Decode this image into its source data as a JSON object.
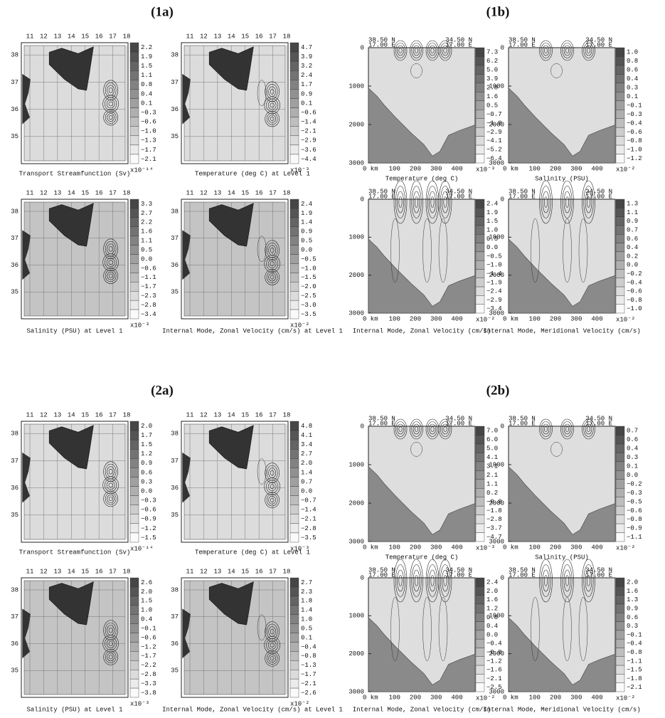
{
  "sections": [
    {
      "label": "(1a)",
      "panels": [
        {
          "caption": "Transport Streamfunction (Sv)",
          "x_ticks": [
            "11",
            "12",
            "13",
            "14",
            "15",
            "16",
            "17",
            "18"
          ],
          "y_ticks": [
            "38",
            "37",
            "36",
            "35"
          ],
          "colorbar": [
            "2.2",
            "1.9",
            "1.5",
            "1.1",
            "0.8",
            "0.4",
            "0.1",
            "−0.3",
            "−0.6",
            "−1.0",
            "−1.3",
            "−1.7",
            "−2.1"
          ],
          "scale": "x10⁻¹⁴"
        },
        {
          "caption": "Temperature (deg C) at Level 1",
          "x_ticks": [
            "11",
            "12",
            "13",
            "14",
            "15",
            "16",
            "17",
            "18"
          ],
          "y_ticks": [
            "38",
            "37",
            "36",
            "35"
          ],
          "colorbar": [
            "4.7",
            "3.9",
            "3.2",
            "2.4",
            "1.7",
            "0.9",
            "0.1",
            "−0.6",
            "−1.4",
            "−2.1",
            "−2.9",
            "−3.6",
            "−4.4"
          ],
          "scale": "x10⁻³"
        },
        {
          "caption": "Salinity (PSU) at Level 1",
          "x_ticks": [
            "11",
            "12",
            "13",
            "14",
            "15",
            "16",
            "17",
            "18"
          ],
          "y_ticks": [
            "38",
            "37",
            "36",
            "35"
          ],
          "colorbar": [
            "3.3",
            "2.7",
            "2.2",
            "1.6",
            "1.1",
            "0.5",
            "0.0",
            "−0.6",
            "−1.1",
            "−1.7",
            "−2.3",
            "−2.8",
            "−3.4"
          ],
          "scale": "x10⁻³"
        },
        {
          "caption": "Internal Mode, Zonal Velocity (cm/s) at Level 1",
          "x_ticks": [
            "11",
            "12",
            "13",
            "14",
            "15",
            "16",
            "17",
            "18"
          ],
          "y_ticks": [
            "38",
            "37",
            "36",
            "35"
          ],
          "colorbar": [
            "2.4",
            "1.9",
            "1.4",
            "0.9",
            "0.5",
            "0.0",
            "−0.5",
            "−1.0",
            "−1.5",
            "−2.0",
            "−2.5",
            "−3.0",
            "−3.5"
          ],
          "scale": "x10⁻²"
        }
      ]
    },
    {
      "label": "(1b)",
      "panels": [
        {
          "caption": "Temperature (deg C)",
          "start": [
            "38.50 N",
            "17.00 E"
          ],
          "end": [
            "34.50 N",
            "17.00 E"
          ],
          "depth_ticks": [
            "0",
            "1000",
            "2000",
            "3000"
          ],
          "distance_ticks": [
            "0 km",
            "100",
            "200",
            "300",
            "400"
          ],
          "colorbar": [
            "7.3",
            "6.2",
            "5.0",
            "3.9",
            "2.8",
            "1.6",
            "0.5",
            "−0.7",
            "−1.8",
            "−2.9",
            "−4.1",
            "−5.2",
            "−6.4"
          ],
          "scale": "x10⁻³"
        },
        {
          "caption": "Salinity (PSU)",
          "start": [
            "38.50 N",
            "17.00 E"
          ],
          "end": [
            "34.50 N",
            "17.00 E"
          ],
          "depth_ticks": [
            "0",
            "1000",
            "2000",
            "3000"
          ],
          "distance_ticks": [
            "0 km",
            "100",
            "200",
            "300",
            "400"
          ],
          "colorbar": [
            "1.0",
            "0.8",
            "0.6",
            "0.4",
            "0.3",
            "0.1",
            "−0.1",
            "−0.3",
            "−0.4",
            "−0.6",
            "−0.8",
            "−1.0",
            "−1.2"
          ],
          "scale": "x10⁻²"
        },
        {
          "caption": "Internal Mode, Zonal Velocity (cm/s)",
          "start": [
            "38.50 N",
            "17.00 E"
          ],
          "end": [
            "34.50 N",
            "17.00 E"
          ],
          "depth_ticks": [
            "0",
            "1000",
            "2000",
            "3000"
          ],
          "distance_ticks": [
            "0 km",
            "100",
            "200",
            "300",
            "400"
          ],
          "colorbar": [
            "2.4",
            "1.9",
            "1.5",
            "1.0",
            "0.5",
            "0.0",
            "−0.5",
            "−1.0",
            "−1.4",
            "−1.9",
            "−2.4",
            "−2.9",
            "−3.4"
          ],
          "scale": "x10⁻²"
        },
        {
          "caption": "Internal Mode, Meridional Velocity (cm/s)",
          "start": [
            "38.50 N",
            "17.00 E"
          ],
          "end": [
            "34.50 N",
            "17.00 E"
          ],
          "depth_ticks": [
            "0",
            "1000",
            "2000",
            "3000"
          ],
          "distance_ticks": [
            "0 km",
            "100",
            "200",
            "300",
            "400"
          ],
          "colorbar": [
            "1.3",
            "1.1",
            "0.9",
            "0.7",
            "0.6",
            "0.4",
            "0.2",
            "0.0",
            "−0.2",
            "−0.4",
            "−0.6",
            "−0.8",
            "−1.0"
          ],
          "scale": "x10⁻²"
        }
      ]
    },
    {
      "label": "(2a)",
      "panels": [
        {
          "caption": "Transport Streamfunction (Sv)",
          "x_ticks": [
            "11",
            "12",
            "13",
            "14",
            "15",
            "16",
            "17",
            "18"
          ],
          "y_ticks": [
            "38",
            "37",
            "36",
            "35"
          ],
          "colorbar": [
            "2.0",
            "1.7",
            "1.5",
            "1.2",
            "0.9",
            "0.6",
            "0.3",
            "0.0",
            "−0.3",
            "−0.6",
            "−0.9",
            "−1.2",
            "−1.5"
          ],
          "scale": "x10⁻¹⁴"
        },
        {
          "caption": "Temperature (deg C) at Level 1",
          "x_ticks": [
            "11",
            "12",
            "13",
            "14",
            "15",
            "16",
            "17",
            "18"
          ],
          "y_ticks": [
            "38",
            "37",
            "36",
            "35"
          ],
          "colorbar": [
            "4.8",
            "4.1",
            "3.4",
            "2.7",
            "2.0",
            "1.4",
            "0.7",
            "0.0",
            "−0.7",
            "−1.4",
            "−2.1",
            "−2.8",
            "−3.5"
          ],
          "scale": "x10⁻³"
        },
        {
          "caption": "Salinity (PSU) at Level 1",
          "x_ticks": [
            "11",
            "12",
            "13",
            "14",
            "15",
            "16",
            "17",
            "18"
          ],
          "y_ticks": [
            "38",
            "37",
            "36",
            "35"
          ],
          "colorbar": [
            "2.6",
            "2.0",
            "1.5",
            "1.0",
            "0.4",
            "−0.1",
            "−0.6",
            "−1.2",
            "−1.7",
            "−2.2",
            "−2.8",
            "−3.3",
            "−3.8"
          ],
          "scale": "x10⁻³"
        },
        {
          "caption": "Internal Mode, Zonal Velocity (cm/s) at Level 1",
          "x_ticks": [
            "11",
            "12",
            "13",
            "14",
            "15",
            "16",
            "17",
            "18"
          ],
          "y_ticks": [
            "38",
            "37",
            "36",
            "35"
          ],
          "colorbar": [
            "2.7",
            "2.3",
            "1.8",
            "1.4",
            "1.0",
            "0.5",
            "0.1",
            "−0.4",
            "−0.8",
            "−1.3",
            "−1.7",
            "−2.1",
            "−2.6"
          ],
          "scale": "x10⁻²"
        }
      ]
    },
    {
      "label": "(2b)",
      "panels": [
        {
          "caption": "Temperature (deg C)",
          "start": [
            "38.50 N",
            "17.00 E"
          ],
          "end": [
            "34.50 N",
            "17.00 E"
          ],
          "depth_ticks": [
            "0",
            "1000",
            "2000",
            "3000"
          ],
          "distance_ticks": [
            "0 km",
            "100",
            "200",
            "300",
            "400"
          ],
          "colorbar": [
            "7.0",
            "6.0",
            "5.0",
            "4.1",
            "3.1",
            "2.1",
            "1.1",
            "0.2",
            "−0.8",
            "−1.8",
            "−2.8",
            "−3.7",
            "−4.7"
          ],
          "scale": "x10⁻³"
        },
        {
          "caption": "Salinity (PSU)",
          "start": [
            "38.50 N",
            "17.00 E"
          ],
          "end": [
            "34.50 N",
            "17.00 E"
          ],
          "depth_ticks": [
            "0",
            "1000",
            "2000",
            "3000"
          ],
          "distance_ticks": [
            "0 km",
            "100",
            "200",
            "300",
            "400"
          ],
          "colorbar": [
            "0.7",
            "0.6",
            "0.4",
            "0.3",
            "0.1",
            "0.0",
            "−0.2",
            "−0.3",
            "−0.5",
            "−0.6",
            "−0.8",
            "−0.9",
            "−1.1"
          ],
          "scale": "x10⁻²"
        },
        {
          "caption": "Internal Mode, Zonal Velocity (cm/s)",
          "start": [
            "38.50 N",
            "17.00 E"
          ],
          "end": [
            "34.50 N",
            "17.00 E"
          ],
          "depth_ticks": [
            "0",
            "1000",
            "2000",
            "3000"
          ],
          "distance_ticks": [
            "0 km",
            "100",
            "200",
            "300",
            "400"
          ],
          "colorbar": [
            "2.4",
            "2.0",
            "1.6",
            "1.2",
            "0.8",
            "0.4",
            "0.0",
            "−0.4",
            "−0.8",
            "−1.2",
            "−1.6",
            "−2.1",
            "−2.5"
          ],
          "scale": "x10⁻²"
        },
        {
          "caption": "Internal Mode, Meridional Velocity (cm/s)",
          "start": [
            "38.50 N",
            "17.00 E"
          ],
          "end": [
            "34.50 N",
            "17.00 E"
          ],
          "depth_ticks": [
            "0",
            "1000",
            "2000",
            "3000"
          ],
          "distance_ticks": [
            "0 km",
            "100",
            "200",
            "300",
            "400"
          ],
          "colorbar": [
            "2.0",
            "1.6",
            "1.3",
            "0.9",
            "0.6",
            "0.3",
            "−0.1",
            "−0.4",
            "−0.8",
            "−1.1",
            "−1.5",
            "−1.8",
            "−2.1"
          ],
          "scale": "x10⁻²"
        }
      ]
    }
  ]
}
